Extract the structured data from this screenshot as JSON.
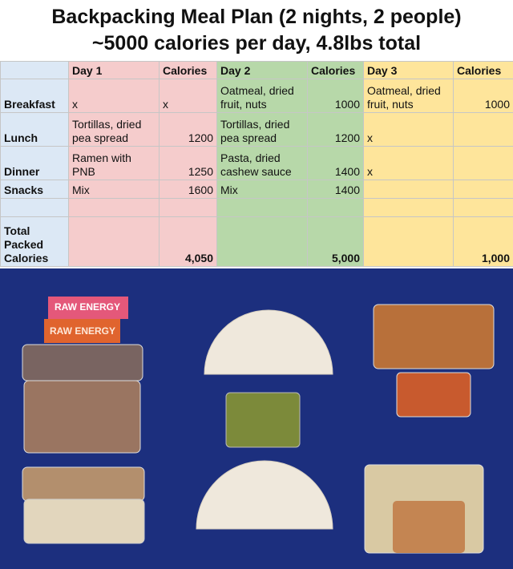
{
  "header": {
    "title": "Backpacking Meal Plan (2 nights, 2 people)",
    "subtitle": "~5000 calories per day, 4.8lbs total"
  },
  "table": {
    "columns": [
      null,
      "Day 1",
      "Calories",
      "Day 2",
      "Calories",
      "Day 3",
      "Calories"
    ],
    "rows": [
      [
        "Breakfast",
        "x",
        "x",
        "Oatmeal, dried fruit, nuts",
        1000,
        "Oatmeal, dried fruit, nuts",
        1000
      ],
      [
        "Lunch",
        "Tortillas, dried pea spread",
        1200,
        "Tortillas, dried pea spread",
        1200,
        "x",
        null
      ],
      [
        "Dinner",
        "Ramen with PNB",
        1250,
        "Pasta, dried cashew sauce",
        1400,
        "x",
        null
      ],
      [
        "Snacks",
        "Mix",
        1600,
        "Mix",
        1400,
        null,
        null
      ],
      [
        null,
        null,
        null,
        null,
        null,
        null,
        null
      ],
      [
        "Total Packed Calories",
        null,
        "4,050",
        null,
        "5,000",
        null,
        "1,000"
      ]
    ]
  },
  "photo": {
    "labels": [
      "RAW ENERGY",
      "RAW ENERGY"
    ]
  }
}
